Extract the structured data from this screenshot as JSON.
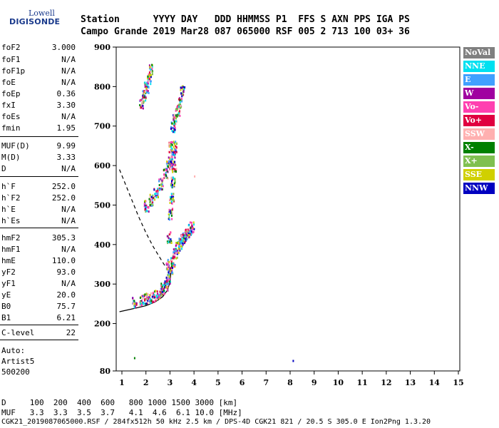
{
  "logo": {
    "top": "Lowell",
    "bottom": "DIGISONDE"
  },
  "header": {
    "line1": "Station      YYYY DAY   DDD HHMMSS P1  FFS S AXN PPS IGA PS",
    "line2": "Campo Grande 2019 Mar28 087 065000 RSF 005 2 713 100 03+ 36"
  },
  "params": [
    {
      "name": "foF2",
      "value": "3.000"
    },
    {
      "name": "foF1",
      "value": "N/A"
    },
    {
      "name": "foF1p",
      "value": "N/A"
    },
    {
      "name": "foE",
      "value": "N/A"
    },
    {
      "name": "foEp",
      "value": "0.36"
    },
    {
      "name": "fxI",
      "value": "3.30"
    },
    {
      "name": "foEs",
      "value": "N/A"
    },
    {
      "name": "fmin",
      "value": "1.95"
    },
    {
      "name": "MUF(D)",
      "value": "9.99"
    },
    {
      "name": "M(D)",
      "value": "3.33"
    },
    {
      "name": "D",
      "value": "N/A"
    },
    {
      "name": "h`F",
      "value": "252.0"
    },
    {
      "name": "h`F2",
      "value": "252.0"
    },
    {
      "name": "h`E",
      "value": "N/A"
    },
    {
      "name": "h`Es",
      "value": "N/A"
    },
    {
      "name": "hmF2",
      "value": "305.3"
    },
    {
      "name": "hmF1",
      "value": "N/A"
    },
    {
      "name": "hmE",
      "value": "110.0"
    },
    {
      "name": "yF2",
      "value": "93.0"
    },
    {
      "name": "yF1",
      "value": "N/A"
    },
    {
      "name": "yE",
      "value": "20.0"
    },
    {
      "name": "B0",
      "value": "75.7"
    },
    {
      "name": "B1",
      "value": "6.21"
    },
    {
      "name": "C-level",
      "value": "22"
    }
  ],
  "auto": {
    "line1": "Auto:",
    "line2": "Artist5",
    "line3": "500200"
  },
  "legend": [
    {
      "label": "NoVal",
      "color": "#808080"
    },
    {
      "label": "NNE",
      "color": "#00e0f0"
    },
    {
      "label": "E",
      "color": "#40a0ff"
    },
    {
      "label": "W",
      "color": "#a000a0"
    },
    {
      "label": "Vo-",
      "color": "#ff40b0"
    },
    {
      "label": "Vo+",
      "color": "#e00040"
    },
    {
      "label": "SSW",
      "color": "#ffb0b0"
    },
    {
      "label": "X-",
      "color": "#008000"
    },
    {
      "label": "X+",
      "color": "#80c050"
    },
    {
      "label": "SSE",
      "color": "#d0d000"
    },
    {
      "label": "NNW",
      "color": "#0000c0"
    }
  ],
  "bottom": {
    "row1": "D     100  200  400  600   800 1000 1500 3000 [km]",
    "row2": "MUF   3.3  3.3  3.5  3.7   4.1  4.6  6.1 10.0 [MHz]",
    "footer": "CGK21_2019087065000.RSF / 284fx512h 50 kHz 2.5 km / DPS-4D CGK21 821 / 20.5 S 305.0 E Ion2Png 1.3.20"
  },
  "chart_data": {
    "type": "scatter",
    "xlabel": "",
    "ylabel": "",
    "xlim": [
      0.9,
      15
    ],
    "ylim": [
      80,
      900
    ],
    "xticks": [
      1,
      2,
      3,
      4,
      5,
      6,
      7,
      8,
      9,
      10,
      11,
      12,
      13,
      14,
      15
    ],
    "yticks": [
      80,
      200,
      300,
      400,
      500,
      600,
      700,
      800,
      900
    ],
    "profile_solid": {
      "x": [
        0.9,
        1.5,
        2.0,
        2.4,
        2.7,
        2.9,
        3.0,
        3.05
      ],
      "y": [
        230,
        238,
        245,
        255,
        268,
        285,
        305,
        335
      ]
    },
    "profile_dashed": {
      "x": [
        0.9,
        1.3,
        1.7,
        2.0,
        2.3,
        2.6,
        2.8,
        3.0
      ],
      "y": [
        590,
        530,
        470,
        430,
        395,
        365,
        345,
        330
      ]
    },
    "echo_clusters": [
      {
        "name": "F-trace",
        "x": [
          1.5,
          1.8,
          2.0,
          2.2,
          2.4,
          2.6,
          2.7,
          2.8,
          2.9,
          3.0,
          3.1,
          3.2,
          3.3,
          3.4,
          3.5,
          3.6,
          3.7,
          3.8,
          3.9
        ],
        "y": [
          255,
          262,
          265,
          268,
          272,
          280,
          290,
          300,
          315,
          340,
          360,
          380,
          395,
          405,
          415,
          420,
          430,
          440,
          445
        ]
      },
      {
        "name": "F-rising",
        "x": [
          2.9,
          2.95,
          3.0,
          3.05,
          3.1,
          3.15,
          3.2
        ],
        "y": [
          350,
          420,
          480,
          520,
          560,
          600,
          650
        ]
      },
      {
        "name": "upper-trace",
        "x": [
          2.0,
          2.2,
          2.4,
          2.6,
          2.8,
          3.0,
          3.1
        ],
        "y": [
          500,
          515,
          530,
          555,
          580,
          610,
          630
        ]
      },
      {
        "name": "high-echo",
        "x": [
          2.9,
          3.0,
          3.1,
          3.2,
          3.3,
          3.4,
          3.5
        ],
        "y": [
          600,
          650,
          700,
          720,
          740,
          760,
          790
        ]
      },
      {
        "name": "high-scatter",
        "x": [
          1.8,
          1.9,
          2.0,
          2.1,
          2.2
        ],
        "y": [
          760,
          780,
          800,
          820,
          845
        ]
      },
      {
        "name": "isolated",
        "x": [
          4.0,
          8.1,
          1.5
        ],
        "y": [
          575,
          108,
          115
        ]
      }
    ]
  }
}
